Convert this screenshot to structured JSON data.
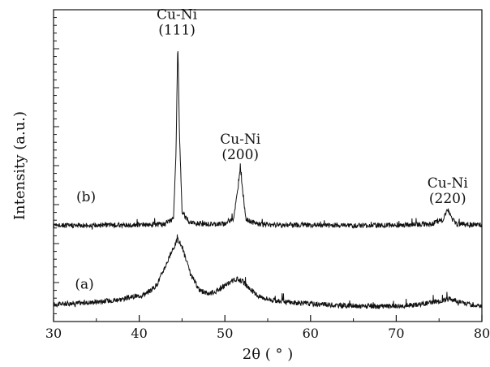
{
  "chart_data": {
    "type": "line",
    "xlabel": "2θ ( ° )",
    "ylabel": "Intensity  (a.u.)",
    "xlim": [
      30,
      80
    ],
    "xticks": [
      30,
      40,
      50,
      60,
      70,
      80
    ],
    "ylim": [
      0,
      100
    ],
    "grid": false,
    "series": [
      {
        "name": "(a)",
        "x": [
          30,
          32,
          34,
          36,
          38,
          40,
          41,
          42,
          43,
          44,
          44.5,
          45,
          46,
          47,
          48,
          49,
          50,
          51,
          51.5,
          52,
          53,
          54,
          56,
          58,
          60,
          62,
          64,
          66,
          68,
          70,
          72,
          74,
          75,
          76,
          76.5,
          77,
          78,
          80
        ],
        "y": [
          5.5,
          5.8,
          6.1,
          6.6,
          7.2,
          8.3,
          9.3,
          11.5,
          17.5,
          23.5,
          26.5,
          24.0,
          15.0,
          10.2,
          9.0,
          9.8,
          11.5,
          13.2,
          13.6,
          13.0,
          10.2,
          8.0,
          6.6,
          6.1,
          5.7,
          5.4,
          5.1,
          4.9,
          4.8,
          5.0,
          5.3,
          6.1,
          6.6,
          7.1,
          7.2,
          6.8,
          5.8,
          5.0
        ]
      },
      {
        "name": "(b)",
        "x": [
          30,
          35,
          40,
          43,
          44,
          44.3,
          44.5,
          44.7,
          45,
          46,
          48,
          50,
          51,
          51.5,
          51.8,
          52.1,
          52.5,
          54,
          58,
          62,
          66,
          70,
          74,
          75.5,
          76,
          76.5,
          77,
          80
        ],
        "y": [
          30.8,
          30.9,
          31.0,
          31.2,
          33.0,
          55.0,
          90.0,
          60.0,
          35.0,
          31.6,
          31.2,
          31.3,
          33.0,
          42.0,
          50.0,
          41.0,
          32.5,
          31.2,
          31.0,
          30.9,
          30.8,
          30.9,
          31.2,
          32.8,
          36.0,
          33.0,
          31.3,
          31.0
        ]
      }
    ],
    "annotations": [
      {
        "line1": "Cu-Ni",
        "line2": "(111)",
        "x": 44.4,
        "y_top": 90
      },
      {
        "line1": "Cu-Ni",
        "line2": "(200)",
        "x": 51.8,
        "y_top": 50
      },
      {
        "line1": "Cu-Ni",
        "line2": "(220)",
        "x": 76.0,
        "y_top": 36
      }
    ],
    "series_labels": [
      {
        "text": "(b)",
        "x": 33.8,
        "y": 38.5
      },
      {
        "text": "(a)",
        "x": 33.6,
        "y": 10.5
      }
    ]
  }
}
